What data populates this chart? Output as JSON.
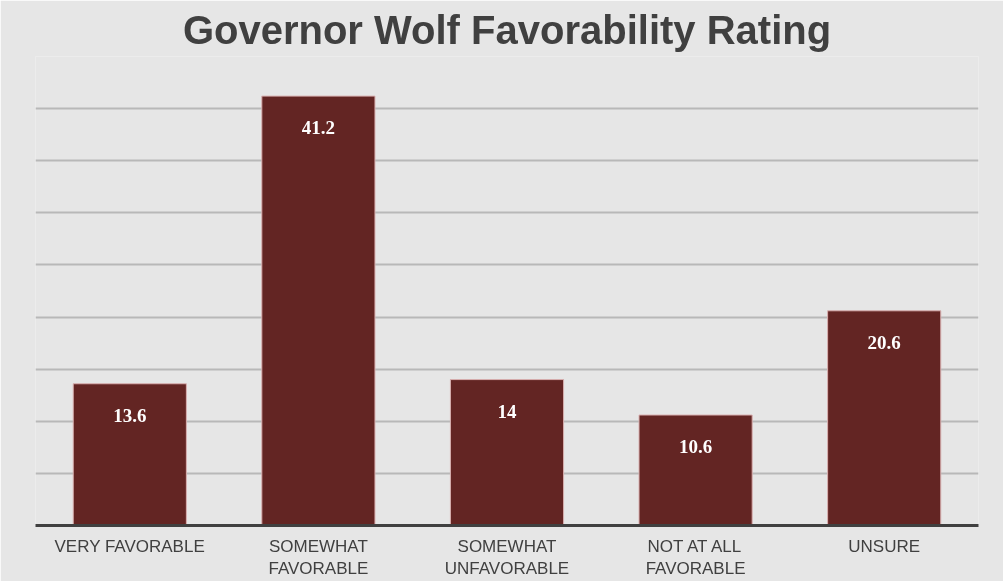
{
  "chart_data": {
    "type": "bar",
    "title": "Governor Wolf Favorability Rating",
    "categories": [
      "VERY FAVORABLE",
      "SOMEWHAT FAVORABLE",
      "SOMEWHAT UNFAVORABLE",
      "NOT AT ALL FAVORABLE",
      "UNSURE"
    ],
    "values": [
      13.6,
      41.2,
      14,
      10.6,
      20.6
    ],
    "color": "#632523",
    "data_labels": true,
    "ylim": [
      0,
      45
    ],
    "yticks": [
      {
        "value": 0,
        "label": null
      },
      {
        "value": 5,
        "label": null
      },
      {
        "value": 10,
        "label": null
      },
      {
        "value": 15,
        "label": null
      },
      {
        "value": 20,
        "label": null
      },
      {
        "value": 25,
        "label": null
      },
      {
        "value": 30,
        "label": null
      },
      {
        "value": 35,
        "label": null
      },
      {
        "value": 40,
        "label": null
      },
      {
        "value": 45,
        "label": null
      }
    ],
    "grid": "y",
    "tick_labels": "x"
  }
}
